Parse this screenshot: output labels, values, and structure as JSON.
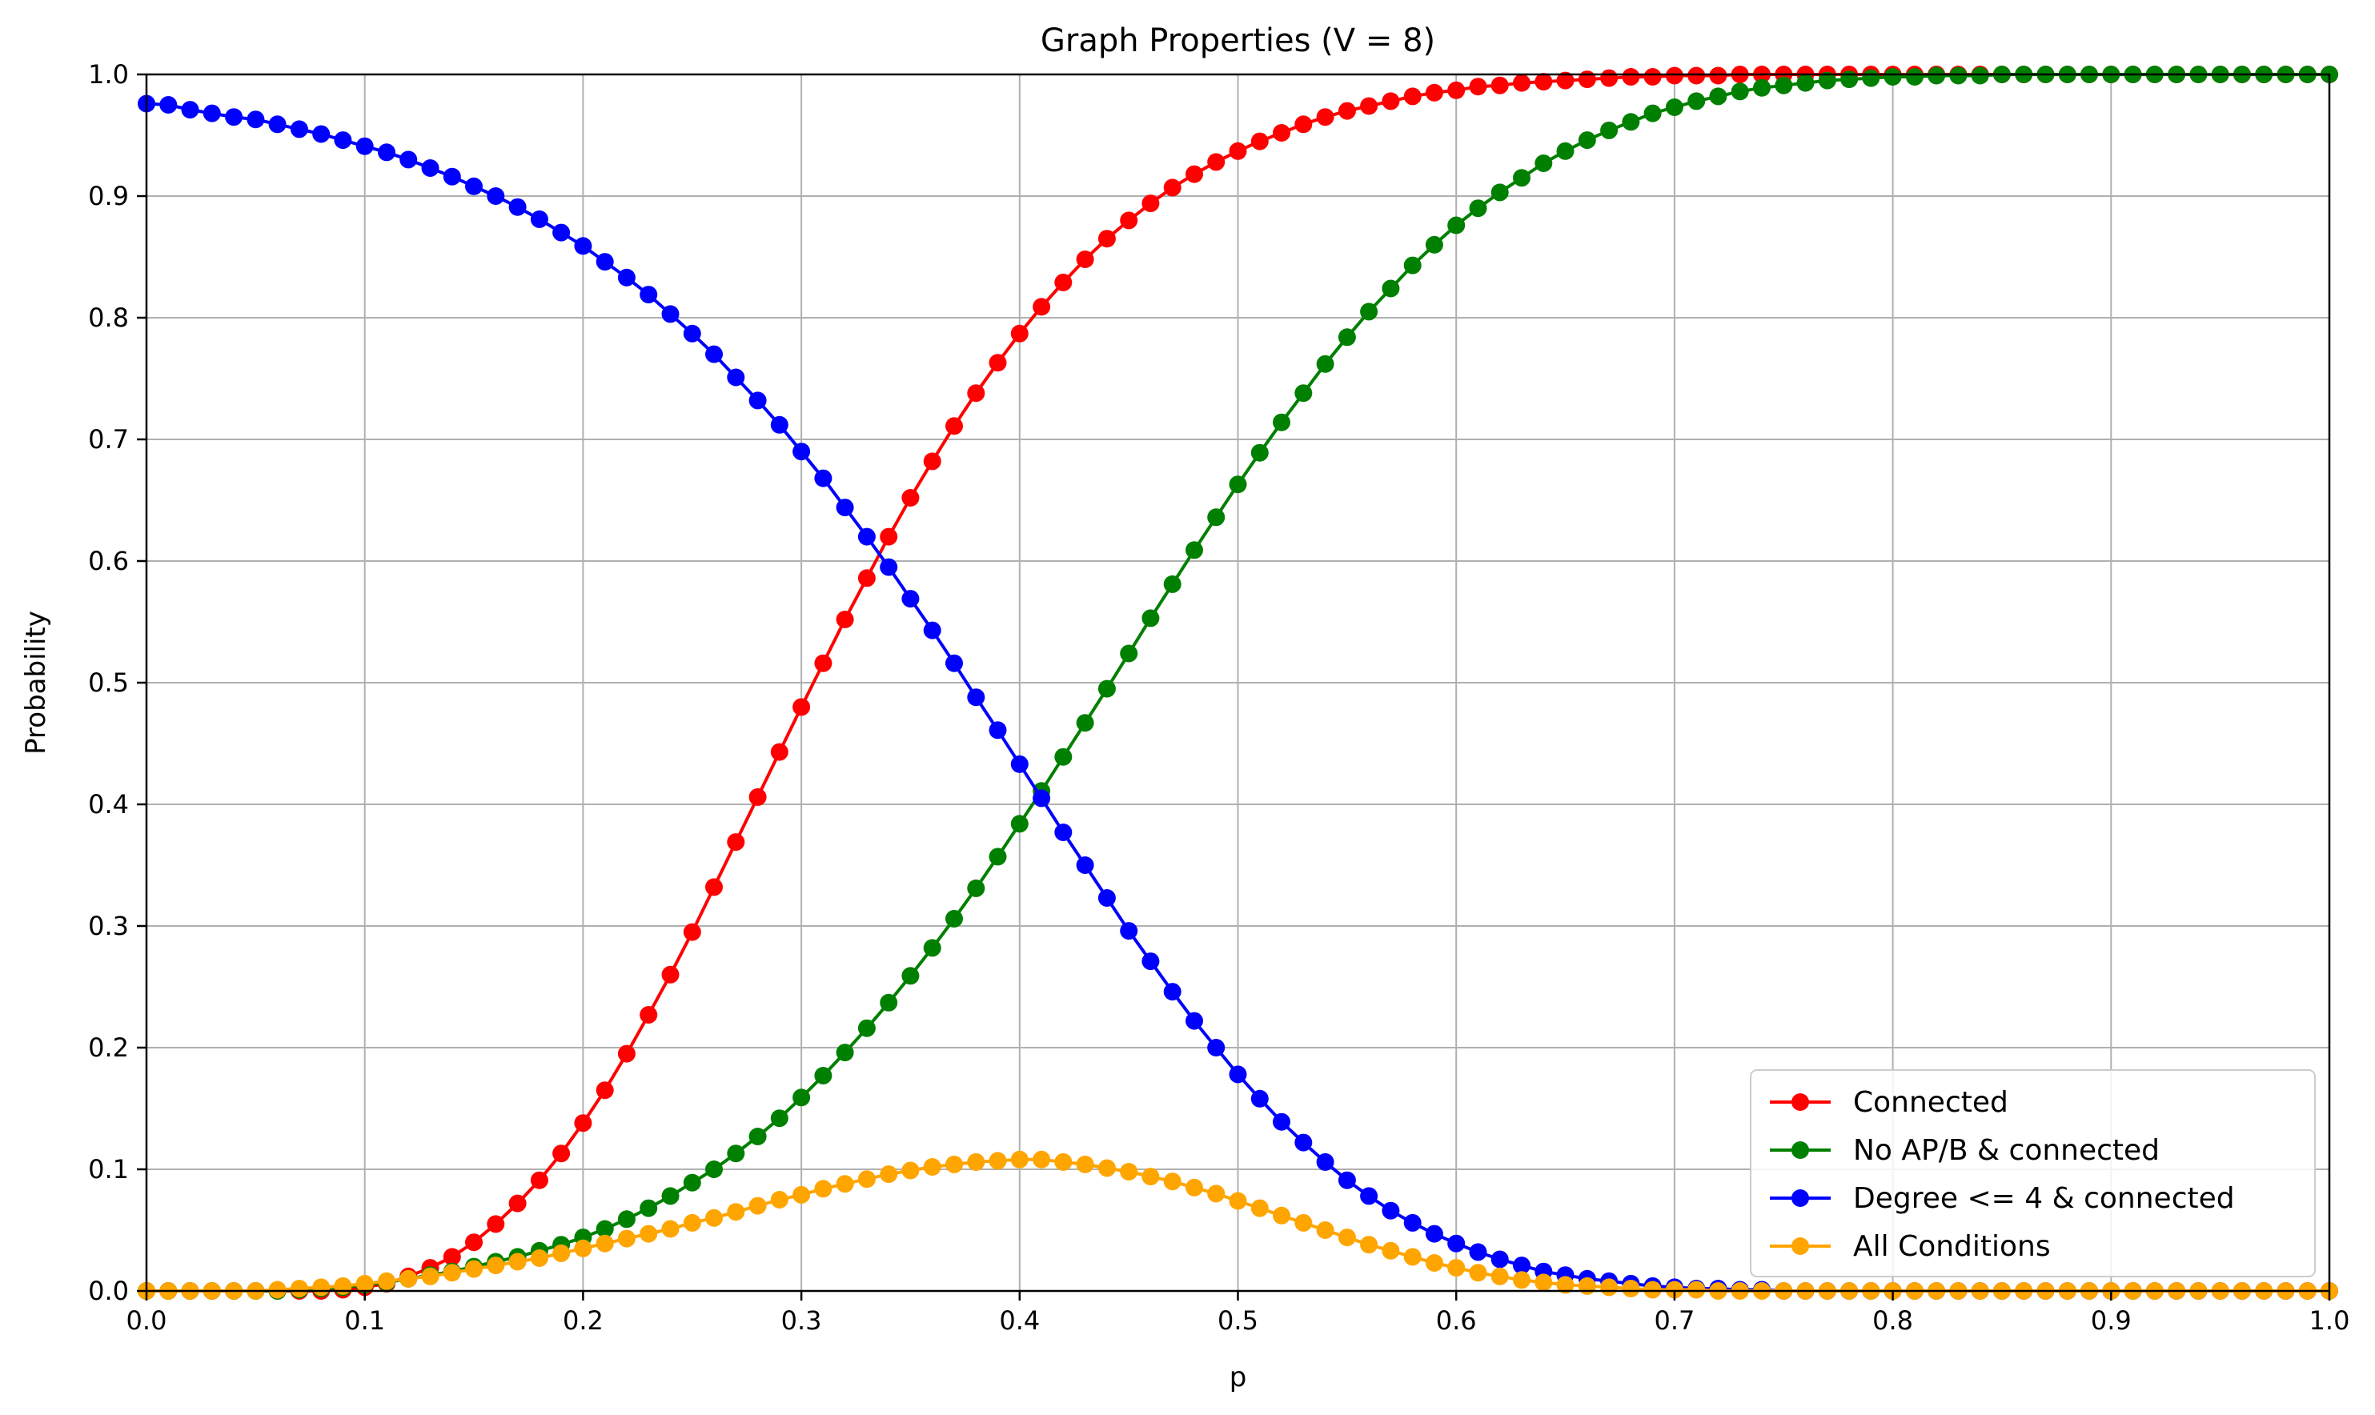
{
  "chart_data": {
    "type": "line",
    "title": "Graph Properties (V = 8)",
    "xlabel": "p",
    "ylabel": "Probability",
    "xlim": [
      0.0,
      1.0
    ],
    "ylim": [
      0.0,
      1.0
    ],
    "grid": true,
    "legend_position": "bottom-right",
    "x_ticks": [
      "0.0",
      "0.1",
      "0.2",
      "0.3",
      "0.4",
      "0.5",
      "0.6",
      "0.7",
      "0.8",
      "0.9",
      "1.0"
    ],
    "y_ticks": [
      "0.0",
      "0.1",
      "0.2",
      "0.3",
      "0.4",
      "0.5",
      "0.6",
      "0.7",
      "0.8",
      "0.9",
      "1.0"
    ],
    "x": [
      0.0,
      0.01,
      0.02,
      0.03,
      0.04,
      0.05,
      0.06,
      0.07,
      0.08,
      0.09,
      0.1,
      0.11,
      0.12,
      0.13,
      0.14,
      0.15,
      0.16,
      0.17,
      0.18,
      0.19,
      0.2,
      0.21,
      0.22,
      0.23,
      0.24,
      0.25,
      0.26,
      0.27,
      0.28,
      0.29,
      0.3,
      0.31,
      0.32,
      0.33,
      0.34,
      0.35,
      0.36,
      0.37,
      0.38,
      0.39,
      0.4,
      0.41,
      0.42,
      0.43,
      0.44,
      0.45,
      0.46,
      0.47,
      0.48,
      0.49,
      0.5,
      0.51,
      0.52,
      0.53,
      0.54,
      0.55,
      0.56,
      0.57,
      0.58,
      0.59,
      0.6,
      0.61,
      0.62,
      0.63,
      0.64,
      0.65,
      0.66,
      0.67,
      0.68,
      0.69,
      0.7,
      0.71,
      0.72,
      0.73,
      0.74,
      0.75,
      0.76,
      0.77,
      0.78,
      0.79,
      0.8,
      0.81,
      0.82,
      0.83,
      0.84,
      0.85,
      0.86,
      0.87,
      0.88,
      0.89,
      0.9,
      0.91,
      0.92,
      0.93,
      0.94,
      0.95,
      0.96,
      0.97,
      0.98,
      0.99,
      1.0
    ],
    "series": [
      {
        "name": "Connected",
        "color": "#ff0000",
        "values": [
          0.0,
          0.0,
          0.0,
          0.0,
          0.0,
          0.0,
          0.0,
          0.0,
          0.0,
          0.001,
          0.003,
          0.006,
          0.012,
          0.019,
          0.028,
          0.04,
          0.055,
          0.072,
          0.091,
          0.113,
          0.138,
          0.165,
          0.195,
          0.227,
          0.26,
          0.295,
          0.332,
          0.369,
          0.406,
          0.443,
          0.48,
          0.516,
          0.552,
          0.586,
          0.62,
          0.652,
          0.682,
          0.711,
          0.738,
          0.763,
          0.787,
          0.809,
          0.829,
          0.848,
          0.865,
          0.88,
          0.894,
          0.907,
          0.918,
          0.928,
          0.937,
          0.945,
          0.952,
          0.959,
          0.965,
          0.97,
          0.974,
          0.978,
          0.982,
          0.985,
          0.987,
          0.99,
          0.991,
          0.993,
          0.994,
          0.995,
          0.996,
          0.997,
          0.998,
          0.998,
          0.999,
          0.999,
          0.999,
          1.0,
          1.0,
          1.0,
          1.0,
          1.0,
          1.0,
          1.0,
          1.0,
          1.0,
          1.0,
          1.0,
          1.0,
          1.0,
          1.0,
          1.0,
          1.0,
          1.0,
          1.0,
          1.0,
          1.0,
          1.0,
          1.0,
          1.0,
          1.0,
          1.0,
          1.0,
          1.0,
          1.0
        ]
      },
      {
        "name": "No AP/B & connected",
        "color": "#008000",
        "values": [
          0.0,
          0.0,
          0.0,
          0.0,
          0.0,
          0.0,
          0.0,
          0.001,
          0.002,
          0.003,
          0.005,
          0.007,
          0.01,
          0.013,
          0.016,
          0.02,
          0.024,
          0.028,
          0.033,
          0.038,
          0.044,
          0.051,
          0.059,
          0.068,
          0.078,
          0.089,
          0.1,
          0.113,
          0.127,
          0.142,
          0.159,
          0.177,
          0.196,
          0.216,
          0.237,
          0.259,
          0.282,
          0.306,
          0.331,
          0.357,
          0.384,
          0.411,
          0.439,
          0.467,
          0.495,
          0.524,
          0.553,
          0.581,
          0.609,
          0.636,
          0.663,
          0.689,
          0.714,
          0.738,
          0.762,
          0.784,
          0.805,
          0.824,
          0.843,
          0.86,
          0.876,
          0.89,
          0.903,
          0.915,
          0.927,
          0.937,
          0.946,
          0.954,
          0.961,
          0.968,
          0.973,
          0.978,
          0.982,
          0.986,
          0.989,
          0.991,
          0.993,
          0.995,
          0.996,
          0.997,
          0.998,
          0.998,
          0.999,
          0.999,
          0.999,
          1.0,
          1.0,
          1.0,
          1.0,
          1.0,
          1.0,
          1.0,
          1.0,
          1.0,
          1.0,
          1.0,
          1.0,
          1.0,
          1.0,
          1.0,
          1.0
        ]
      },
      {
        "name": "Degree <= 4 & connected",
        "color": "#0000ff",
        "values": [
          0.976,
          0.975,
          0.971,
          0.968,
          0.965,
          0.963,
          0.959,
          0.955,
          0.951,
          0.946,
          0.941,
          0.936,
          0.93,
          0.923,
          0.916,
          0.908,
          0.9,
          0.891,
          0.881,
          0.87,
          0.859,
          0.846,
          0.833,
          0.819,
          0.803,
          0.787,
          0.77,
          0.751,
          0.732,
          0.712,
          0.69,
          0.668,
          0.644,
          0.62,
          0.595,
          0.569,
          0.543,
          0.516,
          0.488,
          0.461,
          0.433,
          0.405,
          0.377,
          0.35,
          0.323,
          0.296,
          0.271,
          0.246,
          0.222,
          0.2,
          0.178,
          0.158,
          0.139,
          0.122,
          0.106,
          0.091,
          0.078,
          0.066,
          0.056,
          0.047,
          0.039,
          0.032,
          0.026,
          0.021,
          0.016,
          0.013,
          0.01,
          0.008,
          0.006,
          0.004,
          0.003,
          0.002,
          0.002,
          0.001,
          0.001,
          0.0,
          0.0,
          0.0,
          0.0,
          0.0,
          0.0,
          0.0,
          0.0,
          0.0,
          0.0,
          0.0,
          0.0,
          0.0,
          0.0,
          0.0,
          0.0,
          0.0,
          0.0,
          0.0,
          0.0,
          0.0,
          0.0,
          0.0,
          0.0,
          0.0,
          0.0
        ]
      },
      {
        "name": "All Conditions",
        "color": "#ffa500",
        "values": [
          0.0,
          0.0,
          0.0,
          0.0,
          0.0,
          0.0,
          0.001,
          0.002,
          0.003,
          0.004,
          0.006,
          0.008,
          0.01,
          0.012,
          0.015,
          0.018,
          0.021,
          0.024,
          0.027,
          0.031,
          0.035,
          0.039,
          0.043,
          0.047,
          0.051,
          0.056,
          0.06,
          0.065,
          0.07,
          0.075,
          0.079,
          0.084,
          0.088,
          0.092,
          0.096,
          0.099,
          0.102,
          0.104,
          0.106,
          0.107,
          0.108,
          0.108,
          0.106,
          0.104,
          0.101,
          0.098,
          0.094,
          0.09,
          0.085,
          0.08,
          0.074,
          0.068,
          0.062,
          0.056,
          0.05,
          0.044,
          0.038,
          0.033,
          0.028,
          0.023,
          0.019,
          0.015,
          0.012,
          0.009,
          0.007,
          0.005,
          0.004,
          0.003,
          0.002,
          0.001,
          0.001,
          0.001,
          0.0,
          0.0,
          0.0,
          0.0,
          0.0,
          0.0,
          0.0,
          0.0,
          0.0,
          0.0,
          0.0,
          0.0,
          0.0,
          0.0,
          0.0,
          0.0,
          0.0,
          0.0,
          0.0,
          0.0,
          0.0,
          0.0,
          0.0,
          0.0,
          0.0,
          0.0,
          0.0,
          0.0,
          0.0
        ]
      }
    ]
  }
}
